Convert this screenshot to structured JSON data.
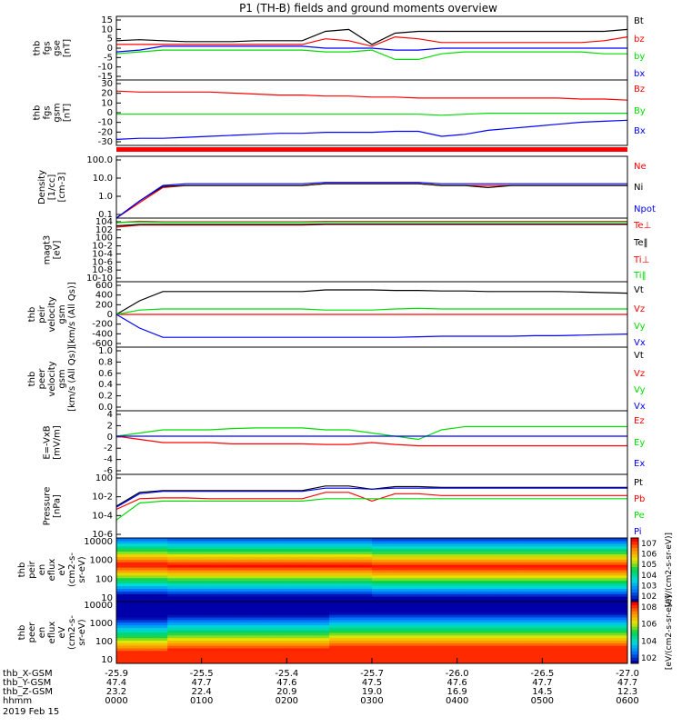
{
  "title": "P1 (TH-B) fields and ground moments overview",
  "date": "2019 Feb 15",
  "time_labels": [
    "0000",
    "0100",
    "0200",
    "0300",
    "0400",
    "0500",
    "0600"
  ],
  "ephemeris": {
    "labels": [
      "thb_X-GSM",
      "thb_Y-GSM",
      "thb_Z-GSM",
      "hhmm"
    ],
    "rows": [
      [
        "-25.9",
        "-25.5",
        "-25.4",
        "-25.7",
        "-26.0",
        "-26.5",
        "-27.0"
      ],
      [
        "47.4",
        "47.7",
        "47.6",
        "47.5",
        "47.6",
        "47.7",
        "47.7"
      ],
      [
        "23.2",
        "22.4",
        "20.9",
        "19.0",
        "16.9",
        "14.5",
        "12.3"
      ]
    ]
  },
  "colors": {
    "black": "#000000",
    "red": "#ff0000",
    "green": "#00dd00",
    "blue": "#0000ff"
  },
  "chart_data": [
    {
      "type": "line",
      "ylabel": [
        "thb",
        "fgs",
        "gse",
        "[nT]"
      ],
      "yticks": [
        "15",
        "10",
        "5",
        "0",
        "-5",
        "-10",
        "-15"
      ],
      "ylim": [
        -17,
        17
      ],
      "series": [
        {
          "name": "Bt",
          "color": "black",
          "values": [
            4,
            4.5,
            4,
            3.5,
            3.5,
            3.5,
            4,
            4,
            4,
            9,
            10,
            2,
            8,
            9,
            9,
            9,
            9,
            9,
            9,
            9,
            9,
            9,
            10
          ]
        },
        {
          "name": "bz",
          "color": "red",
          "values": [
            2,
            2,
            2,
            2,
            2,
            2,
            2,
            2,
            2,
            5,
            4,
            1,
            6,
            5,
            3,
            3,
            3,
            3,
            3,
            3,
            3,
            4,
            6
          ]
        },
        {
          "name": "by",
          "color": "green",
          "values": [
            -3,
            -2,
            -1,
            -1,
            -1,
            -1,
            -1,
            -1,
            -1,
            -2,
            -2,
            -1,
            -6,
            -6,
            -3,
            -2,
            -2,
            -2,
            -2,
            -2,
            -2,
            -3,
            -3
          ]
        },
        {
          "name": "bx",
          "color": "blue",
          "values": [
            -2,
            -1,
            1,
            1,
            1,
            1,
            1,
            1,
            1,
            0,
            0,
            0,
            -1,
            -1,
            0,
            0,
            0,
            0,
            0,
            0,
            0,
            0,
            0
          ]
        }
      ]
    },
    {
      "type": "line",
      "ylabel": [
        "thb",
        "fgs",
        "gsm",
        "[nT]"
      ],
      "yticks": [
        "30",
        "20",
        "10",
        "0",
        "-10",
        "-20",
        "-30"
      ],
      "ylim": [
        -35,
        30
      ],
      "series": [
        {
          "name": "Bz",
          "color": "red",
          "values": [
            19,
            18,
            18,
            18,
            18,
            17,
            16,
            15,
            15,
            14,
            14,
            13,
            13,
            12,
            12,
            12,
            12,
            12,
            12,
            12,
            11,
            11,
            10
          ]
        },
        {
          "name": "By",
          "color": "green",
          "values": [
            -4,
            -4,
            -4,
            -4,
            -4,
            -4,
            -4,
            -4,
            -4,
            -4,
            -4,
            -4,
            -4,
            -4,
            -5,
            -4,
            -3,
            -3,
            -3,
            -3,
            -3,
            -3,
            -3
          ]
        },
        {
          "name": "Bx",
          "color": "blue",
          "values": [
            -29,
            -28,
            -28,
            -27,
            -26,
            -25,
            -24,
            -23,
            -23,
            -22,
            -22,
            -22,
            -21,
            -21,
            -26,
            -24,
            -20,
            -18,
            -16,
            -14,
            -12,
            -11,
            -10
          ]
        }
      ]
    },
    {
      "type": "line",
      "ylabel": [
        "Density",
        "[1/cc]",
        "[cm^-3]"
      ],
      "yticks": [
        "100.0",
        "10.0",
        "1.0",
        "0.1"
      ],
      "log": true,
      "ylim": [
        0.05,
        200
      ],
      "series": [
        {
          "name": "Ne",
          "color": "red",
          "values": [
            0.05,
            0.4,
            3,
            4,
            4,
            4,
            4,
            4,
            4,
            5,
            5,
            5,
            5,
            5,
            4,
            4,
            4,
            4,
            4,
            4,
            4,
            4,
            4
          ]
        },
        {
          "name": "Ni",
          "color": "black",
          "values": [
            0.05,
            0.5,
            3.5,
            4,
            4,
            4,
            4,
            4,
            4,
            5,
            5,
            5,
            5,
            5,
            4,
            4,
            3,
            4,
            4,
            4,
            4,
            4,
            4
          ]
        },
        {
          "name": "Npot",
          "color": "blue",
          "values": [
            0.05,
            0.5,
            4,
            5,
            5,
            5,
            5,
            5,
            5,
            6,
            6,
            6,
            6,
            6,
            5,
            5,
            5,
            5,
            5,
            5,
            5,
            5,
            5
          ]
        }
      ]
    },
    {
      "type": "line",
      "ylabel": [
        "magt3",
        "[eV]"
      ],
      "yticks": [
        "10^4",
        "10^2",
        "10^0",
        "10^-2",
        "10^-4",
        "10^-6",
        "10^-8",
        "10^-10"
      ],
      "log": true,
      "ylim": [
        1e-10,
        10000.0
      ],
      "series": [
        {
          "name": "Te⊥",
          "color": "red",
          "values": [
            100,
            300,
            300,
            300,
            300,
            300,
            300,
            300,
            300,
            400,
            400,
            400,
            400,
            400,
            400,
            400,
            400,
            400,
            400,
            400,
            400,
            400,
            400
          ]
        },
        {
          "name": "Te‖",
          "color": "black",
          "values": [
            200,
            400,
            400,
            400,
            400,
            400,
            400,
            400,
            400,
            500,
            500,
            500,
            500,
            500,
            500,
            500,
            500,
            500,
            500,
            500,
            500,
            500,
            500
          ]
        },
        {
          "name": "Ti⊥",
          "color": "red",
          "values": [
            1000,
            2000,
            1500,
            1500,
            1500,
            1500,
            1500,
            1500,
            1500,
            1800,
            1800,
            1800,
            1800,
            1800,
            1800,
            1800,
            1800,
            1800,
            1800,
            1800,
            1800,
            1800,
            1800
          ]
        },
        {
          "name": "Ti‖",
          "color": "green",
          "values": [
            1000,
            1500,
            1200,
            1200,
            1200,
            1200,
            1200,
            1200,
            1200,
            1400,
            1400,
            1400,
            1400,
            1400,
            1400,
            1400,
            1400,
            1400,
            1400,
            1400,
            1400,
            1400,
            1400
          ]
        }
      ]
    },
    {
      "type": "line",
      "ylabel": [
        "thb",
        "peir",
        "velocity",
        "gsm",
        "[km/s (All Qs)]"
      ],
      "yticks": [
        "600",
        "400",
        "200",
        "0",
        "-200",
        "-400",
        "-600"
      ],
      "ylim": [
        -600,
        600
      ],
      "series": [
        {
          "name": "Vt",
          "color": "black",
          "values": [
            0,
            250,
            420,
            420,
            420,
            420,
            420,
            420,
            420,
            450,
            450,
            450,
            440,
            440,
            430,
            430,
            420,
            420,
            420,
            420,
            410,
            400,
            390
          ]
        },
        {
          "name": "Vz",
          "color": "red",
          "values": [
            0,
            0,
            0,
            0,
            0,
            0,
            0,
            0,
            0,
            0,
            0,
            0,
            0,
            0,
            0,
            0,
            0,
            0,
            0,
            0,
            0,
            0,
            0
          ]
        },
        {
          "name": "Vy",
          "color": "green",
          "values": [
            0,
            80,
            100,
            100,
            100,
            100,
            100,
            100,
            100,
            80,
            80,
            80,
            100,
            110,
            100,
            100,
            100,
            100,
            100,
            100,
            100,
            100,
            100
          ]
        },
        {
          "name": "Vx",
          "color": "blue",
          "values": [
            0,
            -250,
            -420,
            -420,
            -420,
            -420,
            -420,
            -420,
            -420,
            -420,
            -420,
            -420,
            -420,
            -410,
            -400,
            -400,
            -400,
            -400,
            -390,
            -390,
            -380,
            -370,
            -360
          ]
        }
      ]
    },
    {
      "type": "line",
      "ylabel": [
        "thb",
        "peer",
        "velocity",
        "gsm",
        "[km/s (All Qs)]"
      ],
      "yticks": [
        "1.0",
        "0.8",
        "0.6",
        "0.4",
        "0.2",
        "0.0"
      ],
      "ylim": [
        0,
        1
      ],
      "series": [
        {
          "name": "Vt",
          "color": "black",
          "values": []
        },
        {
          "name": "Vz",
          "color": "red",
          "values": []
        },
        {
          "name": "Vy",
          "color": "green",
          "values": []
        },
        {
          "name": "Vx",
          "color": "blue",
          "values": []
        }
      ]
    },
    {
      "type": "line",
      "ylabel": [
        "E=-VxB",
        "[mV/m]"
      ],
      "yticks": [
        "4",
        "2",
        "0",
        "-2",
        "-4",
        "-6"
      ],
      "ylim": [
        -6,
        4
      ],
      "series": [
        {
          "name": "Ez",
          "color": "red",
          "values": [
            0,
            -0.5,
            -1,
            -1,
            -1,
            -1.2,
            -1.2,
            -1.2,
            -1.2,
            -1.3,
            -1.3,
            -1,
            -1.3,
            -1.5,
            -1.5,
            -1.5,
            -1.5,
            -1.5,
            -1.5,
            -1.5,
            -1.5,
            -1.5,
            -1.5
          ]
        },
        {
          "name": "Ey",
          "color": "green",
          "values": [
            0,
            0.5,
            1,
            1,
            1,
            1.2,
            1.3,
            1.3,
            1.3,
            1,
            1,
            0.5,
            0,
            -0.5,
            1,
            1.5,
            1.5,
            1.5,
            1.5,
            1.5,
            1.5,
            1.5,
            1.5
          ]
        },
        {
          "name": "Ex",
          "color": "blue",
          "values": [
            0,
            0,
            0,
            0,
            0,
            0,
            0,
            0,
            0,
            0,
            0,
            0,
            0,
            0,
            0,
            0,
            0,
            0,
            0,
            0,
            0,
            0,
            0
          ]
        }
      ]
    },
    {
      "type": "line",
      "ylabel": [
        "Pressure",
        "[nPa]"
      ],
      "yticks": [
        "10^0",
        "10^-2",
        "10^-4",
        "10^-6"
      ],
      "log": true,
      "ylim": [
        1e-06,
        1
      ],
      "series": [
        {
          "name": "Pt",
          "color": "black",
          "values": [
            0.001,
            0.02,
            0.03,
            0.03,
            0.03,
            0.03,
            0.03,
            0.03,
            0.03,
            0.08,
            0.08,
            0.04,
            0.07,
            0.07,
            0.06,
            0.06,
            0.06,
            0.06,
            0.06,
            0.06,
            0.06,
            0.06,
            0.06
          ]
        },
        {
          "name": "Pb",
          "color": "red",
          "values": [
            0.0005,
            0.005,
            0.006,
            0.006,
            0.005,
            0.005,
            0.005,
            0.005,
            0.005,
            0.02,
            0.02,
            0.003,
            0.015,
            0.015,
            0.01,
            0.01,
            0.01,
            0.01,
            0.01,
            0.01,
            0.01,
            0.01,
            0.01
          ]
        },
        {
          "name": "Pe",
          "color": "green",
          "values": [
            5e-05,
            0.002,
            0.003,
            0.003,
            0.003,
            0.003,
            0.003,
            0.003,
            0.003,
            0.005,
            0.005,
            0.005,
            0.005,
            0.005,
            0.005,
            0.005,
            0.005,
            0.005,
            0.005,
            0.005,
            0.005,
            0.005,
            0.005
          ]
        },
        {
          "name": "Pi",
          "color": "blue",
          "values": [
            0.0008,
            0.015,
            0.025,
            0.025,
            0.025,
            0.025,
            0.025,
            0.025,
            0.025,
            0.05,
            0.05,
            0.04,
            0.05,
            0.05,
            0.05,
            0.05,
            0.05,
            0.05,
            0.05,
            0.05,
            0.05,
            0.05,
            0.05
          ]
        }
      ]
    },
    {
      "type": "heatmap",
      "ylabel": [
        "thb",
        "peir",
        "en",
        "eflux",
        "eV",
        "(cm^2-s-",
        "sr-eV)"
      ],
      "yticks": [
        "10000",
        "1000",
        "100",
        "10"
      ],
      "log": true,
      "ylim": [
        5,
        30000
      ],
      "colorbar": {
        "ticks": [
          "10^7",
          "10^6",
          "10^5",
          "10^4",
          "10^3",
          "10^2"
        ],
        "label": "[eV/(cm^2-s-sr-eV)]"
      },
      "peak_energy": [
        800,
        800,
        700,
        700,
        700,
        700,
        700,
        700,
        700,
        700,
        700,
        600,
        600,
        600,
        600,
        600,
        600,
        600,
        600,
        600,
        600,
        600,
        600
      ]
    },
    {
      "type": "heatmap",
      "ylabel": [
        "thb",
        "peer",
        "en",
        "eflux",
        "eV",
        "(cm^2-s-",
        "sr-eV)"
      ],
      "yticks": [
        "10000",
        "1000",
        "100",
        "10"
      ],
      "log": true,
      "ylim": [
        5,
        30000
      ],
      "colorbar": {
        "ticks": [
          "10^8",
          "10^6",
          "10^4",
          "10^2"
        ],
        "label": "[eV/(cm^2-s-sr-eV)]"
      },
      "peak_energy": [
        20,
        20,
        30,
        30,
        30,
        30,
        30,
        30,
        30,
        40,
        40,
        40,
        40,
        40,
        40,
        40,
        40,
        40,
        40,
        40,
        40,
        40,
        40
      ]
    }
  ]
}
